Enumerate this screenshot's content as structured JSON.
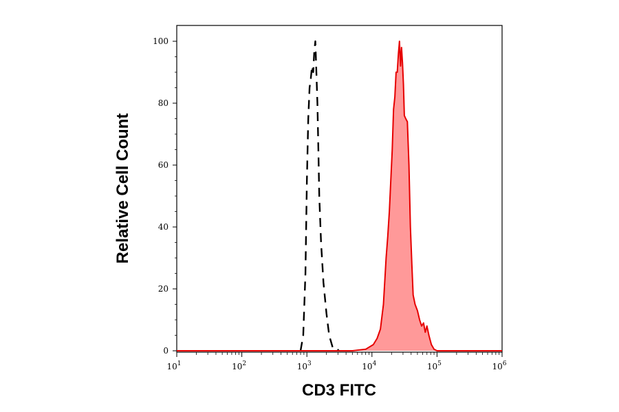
{
  "chart_data": {
    "type": "area",
    "title": "",
    "xlabel": "CD3 FITC",
    "ylabel": "Relative Cell Count",
    "x_scale": "log",
    "xlim": [
      10,
      1000000
    ],
    "ylim": [
      0,
      100
    ],
    "x_ticks": [
      {
        "base": "10",
        "exp": "1",
        "value": 10
      },
      {
        "base": "10",
        "exp": "2",
        "value": 100
      },
      {
        "base": "10",
        "exp": "3",
        "value": 1000
      },
      {
        "base": "10",
        "exp": "4",
        "value": 10000
      },
      {
        "base": "10",
        "exp": "5",
        "value": 100000
      },
      {
        "base": "10",
        "exp": "6",
        "value": 1000000
      }
    ],
    "y_ticks": [
      "0",
      "20",
      "40",
      "60",
      "80",
      "100"
    ],
    "grid": false,
    "legend": "none",
    "series": [
      {
        "style": "dashed-line",
        "color": "#000000",
        "x": [
          800,
          880,
          950,
          1000,
          1050,
          1100,
          1150,
          1200,
          1250,
          1300,
          1350,
          1400,
          1450,
          1500,
          1550,
          1650,
          1800,
          2000,
          2200,
          2500,
          2800,
          3100
        ],
        "y": [
          0,
          5,
          25,
          55,
          75,
          85,
          88,
          92,
          90,
          97,
          100,
          90,
          80,
          65,
          50,
          35,
          22,
          12,
          5,
          1,
          1,
          0
        ]
      },
      {
        "style": "filled-area",
        "color": "#e60000",
        "fill": "#ff9999",
        "x": [
          10,
          5000,
          8000,
          10500,
          12000,
          13500,
          15000,
          16500,
          17500,
          18500,
          19500,
          20500,
          21500,
          22500,
          23500,
          24500,
          25500,
          26500,
          27500,
          28500,
          29500,
          30500,
          31500,
          33000,
          35000,
          37000,
          39000,
          41000,
          43000,
          46000,
          50000,
          54000,
          58000,
          62000,
          66000,
          70000,
          75000,
          82000,
          90000,
          100000,
          1000000
        ],
        "y": [
          0,
          0,
          0.5,
          2,
          4,
          7,
          15,
          30,
          37,
          45,
          55,
          65,
          78,
          82,
          90,
          90,
          96,
          100,
          92,
          98,
          93,
          86,
          76,
          75,
          74,
          60,
          40,
          28,
          18,
          15,
          13,
          10,
          8,
          9,
          6,
          8,
          5,
          2,
          0.5,
          0,
          0
        ]
      }
    ]
  }
}
